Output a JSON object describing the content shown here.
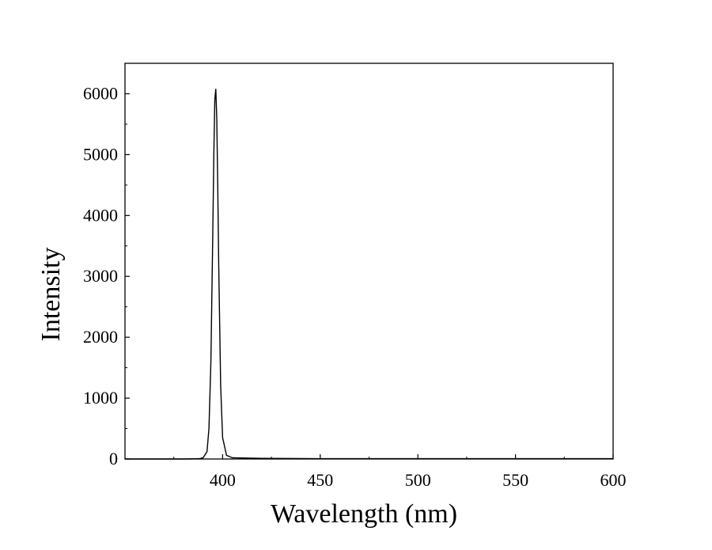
{
  "chart_data": {
    "type": "line",
    "title": "",
    "xlabel": "Wavelength (nm)",
    "ylabel": "Intensity",
    "xlim": [
      350,
      600
    ],
    "ylim": [
      0,
      6500
    ],
    "x_ticks": [
      400,
      450,
      500,
      550,
      600
    ],
    "y_ticks": [
      0,
      1000,
      2000,
      3000,
      4000,
      5000,
      6000
    ],
    "x_tick_labels": [
      "400",
      "450",
      "500",
      "550",
      "600"
    ],
    "y_tick_labels": [
      "0",
      "1000",
      "2000",
      "3000",
      "4000",
      "5000",
      "6000"
    ],
    "grid": false,
    "legend": "none",
    "line_color": "#000000",
    "series": [
      {
        "x": [
          350,
          380,
          388,
          390,
          392,
          393,
          394,
          395,
          395.5,
          396,
          396.5,
          397,
          397.5,
          398,
          399,
          400,
          402,
          405,
          420,
          450,
          500,
          550,
          600
        ],
        "values": [
          0,
          0,
          5,
          20,
          120,
          500,
          1600,
          3800,
          5000,
          5900,
          6080,
          5600,
          4500,
          3200,
          1200,
          350,
          60,
          20,
          10,
          5,
          5,
          5,
          5
        ]
      }
    ]
  }
}
